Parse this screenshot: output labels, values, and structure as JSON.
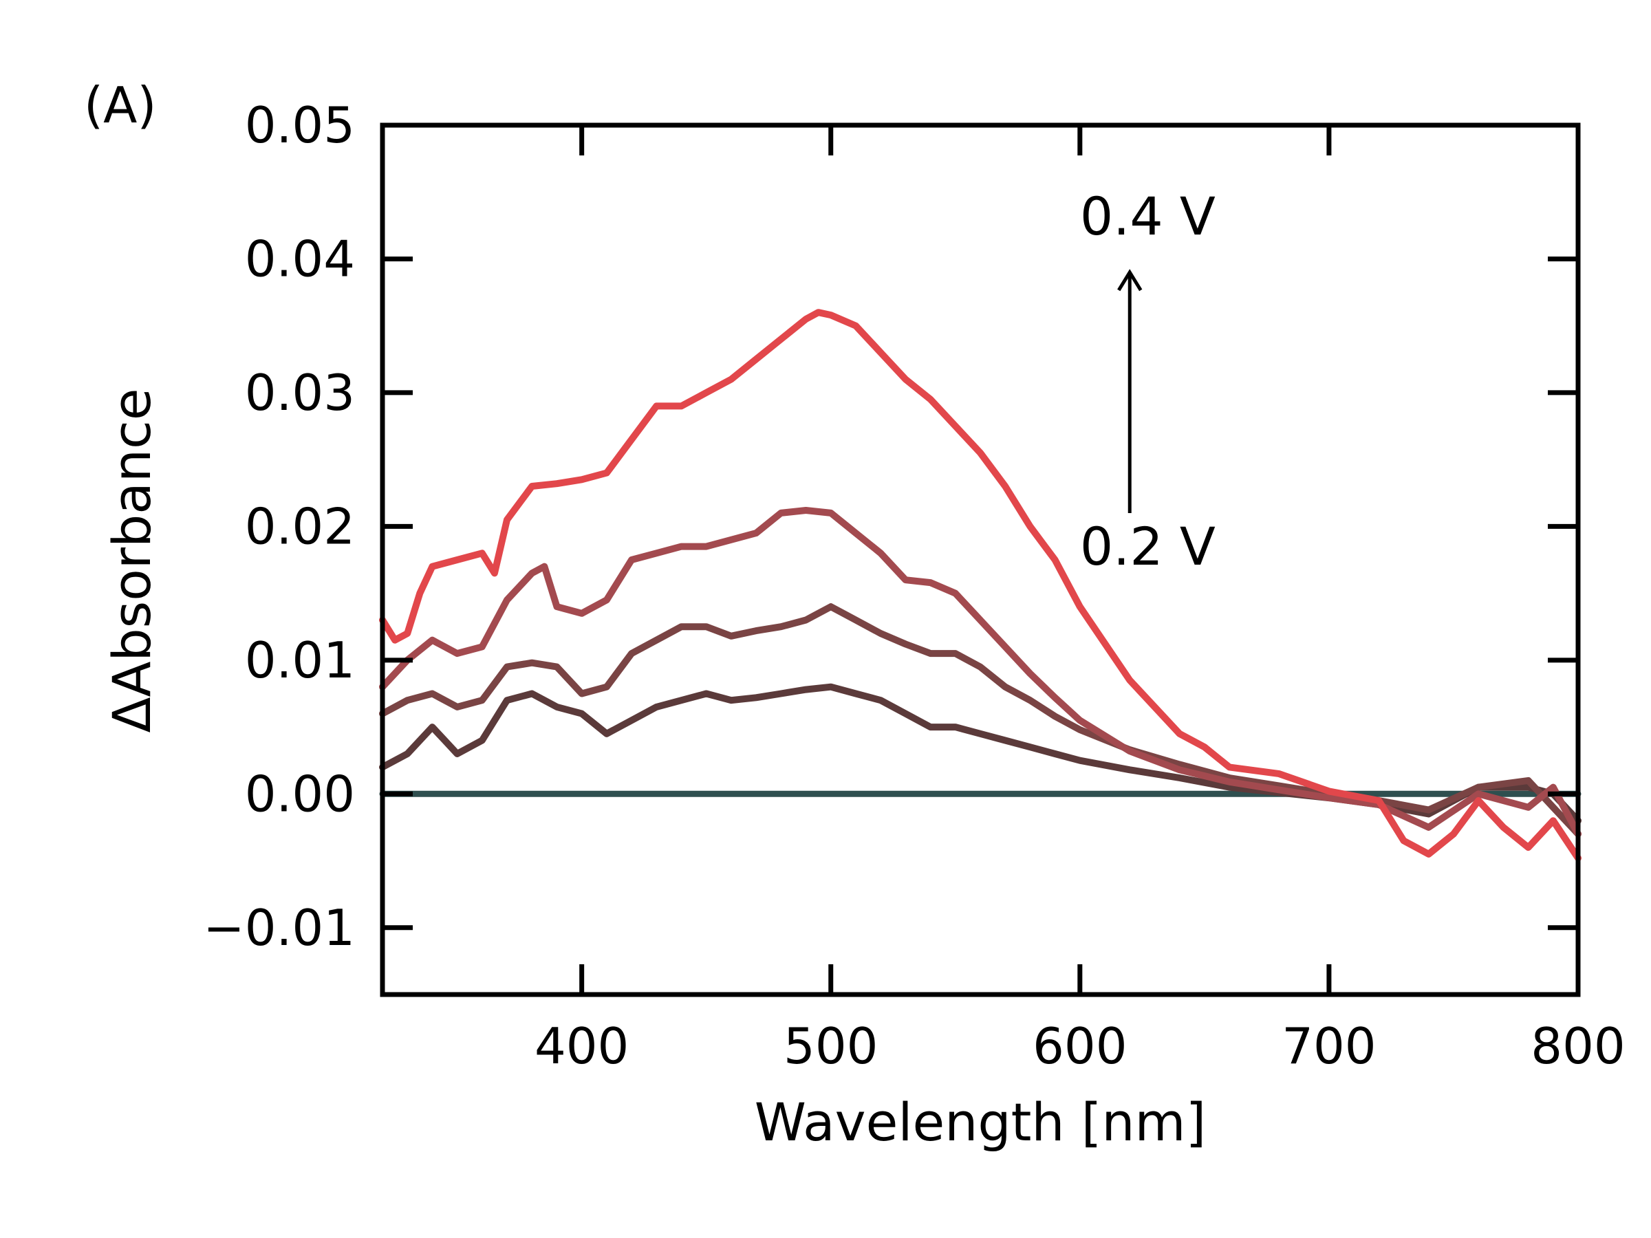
{
  "panel_label": "(A)",
  "chart_data": {
    "type": "line",
    "title": "",
    "xlabel": "Wavelength [nm]",
    "ylabel": "ΔAbsorbance",
    "xlim": [
      320,
      800
    ],
    "ylim": [
      -0.015,
      0.05
    ],
    "xticks": [
      400,
      500,
      600,
      700,
      800
    ],
    "xtick_labels": [
      "400",
      "500",
      "600",
      "700",
      "800"
    ],
    "yticks": [
      -0.01,
      0.0,
      0.01,
      0.02,
      0.03,
      0.04,
      0.05
    ],
    "ytick_labels": [
      "−0.01",
      "0.00",
      "0.01",
      "0.02",
      "0.03",
      "0.04",
      "0.05"
    ],
    "grid": false,
    "annotations": {
      "top_label": "0.4 V",
      "bottom_label": "0.2 V",
      "arrow": {
        "x": 620,
        "y_from": 0.021,
        "y_to": 0.039
      }
    },
    "series": [
      {
        "color": "#2f4f4f",
        "x": [
          320,
          800
        ],
        "y": [
          0.0,
          0.0
        ]
      },
      {
        "color": "#5b3a3a",
        "x": [
          320,
          330,
          340,
          345,
          350,
          360,
          370,
          380,
          390,
          400,
          410,
          420,
          430,
          440,
          450,
          460,
          470,
          480,
          490,
          500,
          510,
          520,
          530,
          540,
          550,
          560,
          570,
          580,
          590,
          600,
          620,
          640,
          660,
          680,
          700,
          720,
          740,
          760,
          780,
          790,
          800
        ],
        "y": [
          0.002,
          0.003,
          0.005,
          0.004,
          0.003,
          0.004,
          0.007,
          0.0075,
          0.0065,
          0.006,
          0.0045,
          0.0055,
          0.0065,
          0.007,
          0.0075,
          0.007,
          0.0072,
          0.0075,
          0.0078,
          0.008,
          0.0075,
          0.007,
          0.006,
          0.005,
          0.005,
          0.0045,
          0.004,
          0.0035,
          0.003,
          0.0025,
          0.0018,
          0.0012,
          0.0005,
          0.0001,
          -0.0003,
          -0.0008,
          -0.0015,
          0.0005,
          0.0005,
          0.0,
          -0.002
        ]
      },
      {
        "color": "#7a4444",
        "x": [
          320,
          330,
          340,
          350,
          360,
          370,
          380,
          390,
          400,
          410,
          420,
          430,
          440,
          450,
          460,
          470,
          480,
          490,
          500,
          510,
          520,
          530,
          540,
          550,
          560,
          570,
          580,
          590,
          600,
          620,
          640,
          660,
          680,
          700,
          720,
          740,
          760,
          780,
          790,
          800
        ],
        "y": [
          0.006,
          0.007,
          0.0075,
          0.0065,
          0.007,
          0.0095,
          0.0098,
          0.0095,
          0.0075,
          0.008,
          0.0105,
          0.0115,
          0.0125,
          0.0125,
          0.0118,
          0.0122,
          0.0125,
          0.013,
          0.014,
          0.013,
          0.012,
          0.0112,
          0.0105,
          0.0105,
          0.0095,
          0.008,
          0.007,
          0.0058,
          0.0048,
          0.0033,
          0.0022,
          0.0012,
          0.0006,
          0.0,
          -0.0005,
          -0.0012,
          0.0005,
          0.001,
          -0.001,
          -0.003
        ]
      },
      {
        "color": "#a34a4f",
        "x": [
          320,
          330,
          340,
          350,
          360,
          370,
          380,
          385,
          390,
          400,
          410,
          420,
          430,
          440,
          450,
          460,
          470,
          480,
          490,
          500,
          510,
          520,
          530,
          540,
          550,
          560,
          570,
          580,
          590,
          600,
          620,
          640,
          660,
          680,
          700,
          720,
          740,
          760,
          780,
          790,
          800
        ],
        "y": [
          0.008,
          0.01,
          0.0115,
          0.0105,
          0.011,
          0.0145,
          0.0165,
          0.017,
          0.014,
          0.0135,
          0.0145,
          0.0175,
          0.018,
          0.0185,
          0.0185,
          0.019,
          0.0195,
          0.021,
          0.0212,
          0.021,
          0.0195,
          0.018,
          0.016,
          0.0158,
          0.015,
          0.013,
          0.011,
          0.009,
          0.0072,
          0.0055,
          0.0032,
          0.0018,
          0.0009,
          0.0003,
          -0.0003,
          -0.0008,
          -0.0025,
          0.0,
          -0.001,
          0.0005,
          -0.003
        ]
      },
      {
        "color": "#e2474b",
        "x": [
          320,
          325,
          330,
          335,
          340,
          350,
          360,
          365,
          370,
          380,
          390,
          400,
          410,
          420,
          430,
          440,
          450,
          460,
          470,
          480,
          490,
          495,
          500,
          510,
          520,
          530,
          540,
          550,
          560,
          570,
          580,
          590,
          600,
          620,
          640,
          650,
          660,
          680,
          700,
          720,
          730,
          740,
          750,
          760,
          770,
          780,
          790,
          800
        ],
        "y": [
          0.013,
          0.0115,
          0.012,
          0.015,
          0.017,
          0.0175,
          0.018,
          0.0165,
          0.0205,
          0.023,
          0.0232,
          0.0235,
          0.024,
          0.0265,
          0.029,
          0.029,
          0.03,
          0.031,
          0.0325,
          0.034,
          0.0355,
          0.036,
          0.0358,
          0.035,
          0.033,
          0.031,
          0.0295,
          0.0275,
          0.0255,
          0.023,
          0.02,
          0.0175,
          0.014,
          0.0085,
          0.0045,
          0.0035,
          0.002,
          0.0015,
          0.0002,
          -0.0005,
          -0.0035,
          -0.0045,
          -0.003,
          -0.0005,
          -0.0025,
          -0.004,
          -0.002,
          -0.0048
        ]
      }
    ]
  }
}
